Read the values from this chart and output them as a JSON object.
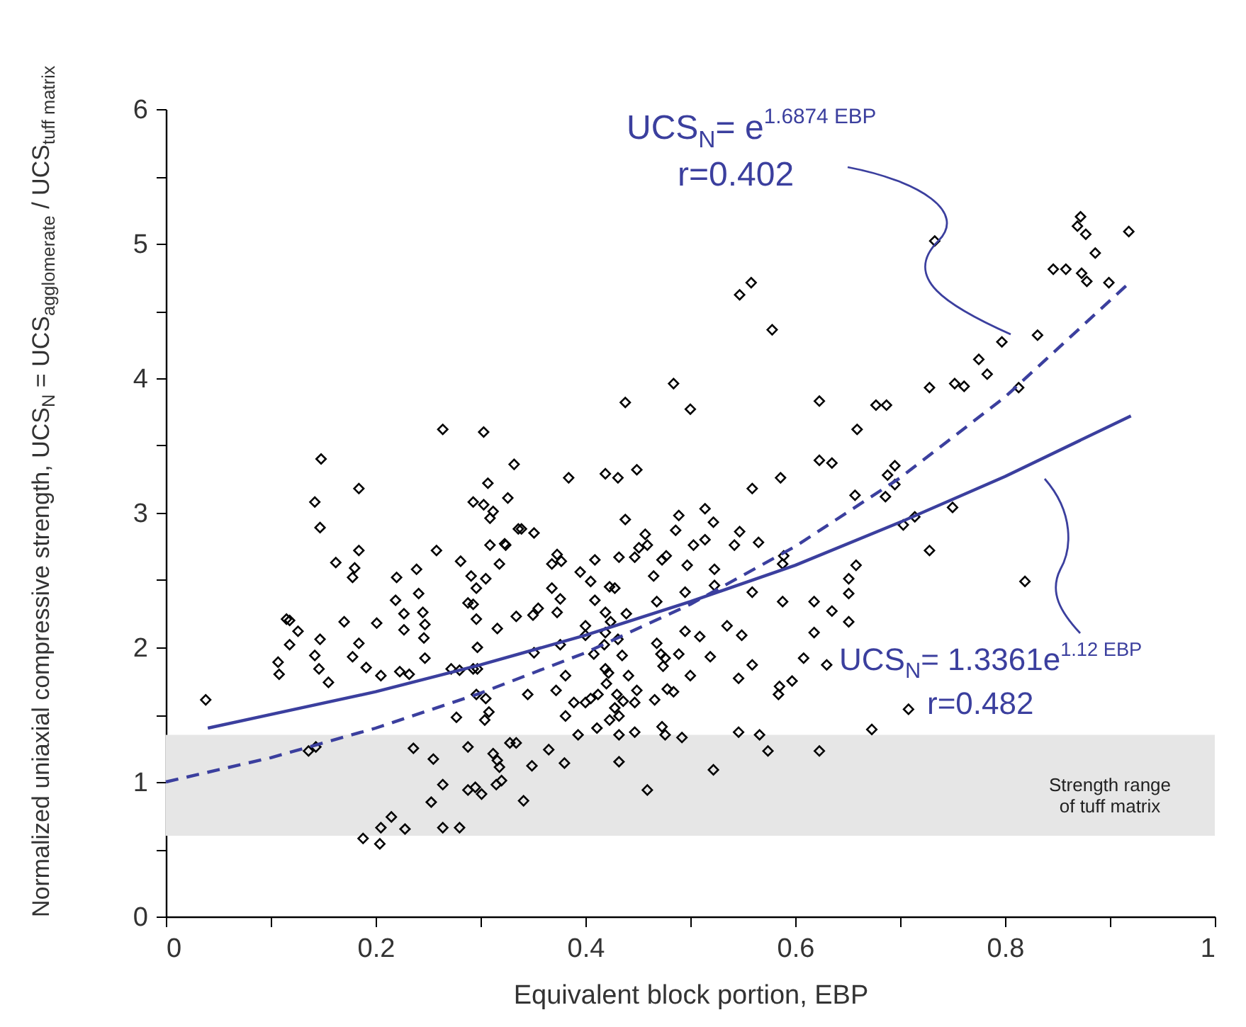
{
  "chart_data": {
    "type": "scatter",
    "xlabel": "Equivalent block portion, EBP",
    "ylabel": "Normalized uniaxial compressive strength,  UCS$_{N}$ = UCS$_{agglomerate}$ / UCS$_{tuff matrix}$",
    "xlim": [
      0,
      1
    ],
    "ylim": [
      0,
      6
    ],
    "xticks": [
      0,
      {
        "value": 0.1,
        "label": null
      },
      0.2,
      {
        "value": 0.3,
        "label": null
      },
      0.4,
      {
        "value": 0.5,
        "label": null
      },
      0.6,
      {
        "value": 0.7,
        "label": null
      },
      0.8,
      {
        "value": 0.9,
        "label": null
      },
      1
    ],
    "yticks": [
      0,
      {
        "value": 0.5,
        "label": null
      },
      1,
      {
        "value": 1.5,
        "label": null
      },
      2,
      {
        "value": 2.5,
        "label": null
      },
      3,
      {
        "value": 3.5,
        "label": null
      },
      4,
      {
        "value": 4.5,
        "label": null
      },
      5,
      {
        "value": 5.5,
        "label": null
      },
      6
    ],
    "grid": false,
    "bands": [
      {
        "axis": "y",
        "from": 0.6,
        "to": 1.35,
        "label": "Strength range\nof tuff matrix",
        "color": "#e6e6e6"
      }
    ],
    "annotations": [
      "UCS$_{N}$= e$^{1.6874 EBP}$",
      "r=0.402",
      "UCS$_{N}$= 1.3361e$^{1.12 EBP}$",
      "r=0.482"
    ],
    "series": [
      {
        "color": "#000000",
        "marker": "diamond",
        "x": [
          0.038,
          0.148,
          0.142,
          0.147,
          0.184,
          0.184,
          0.162,
          0.18,
          0.178,
          0.115,
          0.118,
          0.126,
          0.118,
          0.107,
          0.108,
          0.147,
          0.142,
          0.146,
          0.155,
          0.17,
          0.184,
          0.178,
          0.191,
          0.201,
          0.205,
          0.22,
          0.219,
          0.227,
          0.227,
          0.239,
          0.241,
          0.245,
          0.247,
          0.246,
          0.247,
          0.223,
          0.232,
          0.258,
          0.264,
          0.272,
          0.28,
          0.281,
          0.291,
          0.296,
          0.305,
          0.288,
          0.293,
          0.296,
          0.297,
          0.293,
          0.297,
          0.303,
          0.307,
          0.293,
          0.303,
          0.312,
          0.309,
          0.309,
          0.323,
          0.324,
          0.318,
          0.332,
          0.326,
          0.336,
          0.334,
          0.316,
          0.296,
          0.305,
          0.308,
          0.304,
          0.277,
          0.136,
          0.143,
          0.236,
          0.255,
          0.264,
          0.253,
          0.288,
          0.312,
          0.316,
          0.318,
          0.315,
          0.32,
          0.328,
          0.334,
          0.288,
          0.295,
          0.301,
          0.215,
          0.205,
          0.228,
          0.188,
          0.204,
          0.264,
          0.28,
          0.578,
          0.484,
          0.438,
          0.5,
          0.623,
          0.659,
          0.384,
          0.419,
          0.431,
          0.449,
          0.623,
          0.635,
          0.586,
          0.559,
          0.657,
          0.339,
          0.351,
          0.438,
          0.489,
          0.486,
          0.514,
          0.522,
          0.373,
          0.368,
          0.377,
          0.409,
          0.432,
          0.447,
          0.457,
          0.451,
          0.459,
          0.477,
          0.473,
          0.503,
          0.514,
          0.497,
          0.542,
          0.547,
          0.565,
          0.395,
          0.405,
          0.465,
          0.523,
          0.523,
          0.589,
          0.588,
          0.658,
          0.651,
          0.651,
          0.368,
          0.376,
          0.373,
          0.355,
          0.35,
          0.423,
          0.428,
          0.409,
          0.419,
          0.424,
          0.439,
          0.4,
          0.4,
          0.419,
          0.431,
          0.376,
          0.351,
          0.468,
          0.495,
          0.559,
          0.588,
          0.618,
          0.635,
          0.651,
          0.535,
          0.549,
          0.495,
          0.509,
          0.618,
          0.408,
          0.418,
          0.435,
          0.468,
          0.472,
          0.476,
          0.474,
          0.489,
          0.519,
          0.559,
          0.608,
          0.63,
          0.546,
          0.5,
          0.585,
          0.597,
          0.584,
          0.345,
          0.372,
          0.381,
          0.389,
          0.4,
          0.405,
          0.412,
          0.42,
          0.422,
          0.419,
          0.43,
          0.436,
          0.441,
          0.449,
          0.447,
          0.466,
          0.478,
          0.484,
          0.381,
          0.393,
          0.411,
          0.423,
          0.428,
          0.432,
          0.432,
          0.447,
          0.473,
          0.476,
          0.492,
          0.546,
          0.566,
          0.623,
          0.574,
          0.365,
          0.349,
          0.38,
          0.432,
          0.522,
          0.459,
          0.341,
          0.547,
          0.558,
          0.872,
          0.869,
          0.877,
          0.918,
          0.886,
          0.846,
          0.858,
          0.873,
          0.878,
          0.899,
          0.733,
          0.831,
          0.797,
          0.775,
          0.783,
          0.728,
          0.752,
          0.761,
          0.813,
          0.677,
          0.687,
          0.688,
          0.695,
          0.695,
          0.686,
          0.703,
          0.714,
          0.75,
          0.728,
          0.819,
          0.708,
          0.673
        ],
        "values": [
          1.61,
          3.4,
          3.08,
          2.89,
          3.18,
          2.72,
          2.63,
          2.59,
          2.52,
          2.21,
          2.2,
          2.12,
          2.02,
          1.89,
          1.8,
          2.06,
          1.94,
          1.84,
          1.74,
          2.19,
          2.03,
          1.93,
          1.85,
          2.18,
          1.79,
          2.52,
          2.35,
          2.25,
          2.13,
          2.58,
          2.4,
          2.26,
          2.17,
          2.07,
          1.92,
          1.82,
          1.8,
          2.72,
          3.62,
          1.84,
          1.83,
          2.64,
          2.53,
          2.44,
          2.51,
          2.33,
          2.32,
          2.21,
          2.0,
          1.84,
          1.84,
          3.6,
          3.22,
          3.08,
          3.06,
          3.01,
          2.96,
          2.76,
          2.77,
          2.76,
          2.62,
          3.36,
          3.11,
          2.88,
          2.23,
          2.14,
          1.65,
          1.62,
          1.52,
          1.46,
          1.48,
          1.23,
          1.26,
          1.25,
          1.17,
          0.98,
          0.85,
          1.26,
          1.21,
          1.16,
          1.11,
          0.98,
          1.01,
          1.29,
          1.29,
          0.94,
          0.96,
          0.91,
          0.74,
          0.66,
          0.65,
          0.58,
          0.54,
          0.66,
          0.66,
          4.36,
          3.96,
          3.82,
          3.77,
          3.83,
          3.62,
          3.26,
          3.29,
          3.26,
          3.32,
          3.39,
          3.37,
          3.26,
          3.18,
          3.13,
          2.88,
          2.85,
          2.95,
          2.98,
          2.87,
          3.03,
          2.93,
          2.69,
          2.62,
          2.64,
          2.65,
          2.67,
          2.67,
          2.84,
          2.74,
          2.76,
          2.68,
          2.65,
          2.76,
          2.8,
          2.61,
          2.76,
          2.86,
          2.78,
          2.56,
          2.49,
          2.53,
          2.58,
          2.46,
          2.68,
          2.62,
          2.61,
          2.51,
          2.4,
          2.44,
          2.36,
          2.26,
          2.29,
          2.24,
          2.45,
          2.44,
          2.35,
          2.26,
          2.19,
          2.25,
          2.16,
          2.09,
          2.11,
          2.06,
          2.02,
          1.96,
          2.34,
          2.41,
          2.41,
          2.34,
          2.34,
          2.27,
          2.19,
          2.16,
          2.09,
          2.12,
          2.08,
          2.11,
          1.95,
          2.02,
          1.94,
          2.03,
          1.95,
          1.92,
          1.86,
          1.95,
          1.93,
          1.87,
          1.92,
          1.87,
          1.77,
          1.79,
          1.71,
          1.75,
          1.65,
          1.65,
          1.68,
          1.79,
          1.59,
          1.59,
          1.62,
          1.65,
          1.73,
          1.81,
          1.84,
          1.65,
          1.6,
          1.79,
          1.68,
          1.59,
          1.61,
          1.69,
          1.67,
          1.49,
          1.35,
          1.4,
          1.46,
          1.55,
          1.49,
          1.35,
          1.37,
          1.41,
          1.35,
          1.33,
          1.37,
          1.35,
          1.23,
          1.23,
          1.24,
          1.12,
          1.14,
          1.15,
          1.09,
          0.94,
          0.86,
          4.62,
          4.71,
          5.2,
          5.13,
          5.07,
          5.09,
          4.93,
          4.81,
          4.81,
          4.78,
          4.72,
          4.71,
          5.02,
          4.32,
          4.27,
          4.14,
          4.03,
          3.93,
          3.96,
          3.94,
          3.93,
          3.8,
          3.8,
          3.28,
          3.35,
          3.21,
          3.12,
          2.91,
          2.97,
          3.04,
          2.72,
          2.49,
          1.54,
          1.39
        ]
      },
      {
        "type": "line",
        "color": "#3b3f9e",
        "line_style": "dashed",
        "x": [
          0,
          0.1,
          0.2,
          0.3,
          0.4,
          0.5,
          0.6,
          0.7,
          0.8,
          0.92
        ],
        "values": [
          1.0,
          1.18,
          1.4,
          1.66,
          1.96,
          2.32,
          2.75,
          3.26,
          3.86,
          4.72
        ]
      },
      {
        "type": "line",
        "color": "#3b3f9e",
        "line_style": "solid",
        "x": [
          0.04,
          0.2,
          0.3,
          0.4,
          0.5,
          0.6,
          0.7,
          0.8,
          0.92
        ],
        "values": [
          1.4,
          1.67,
          1.87,
          2.09,
          2.34,
          2.61,
          2.93,
          3.27,
          3.72
        ]
      }
    ]
  }
}
